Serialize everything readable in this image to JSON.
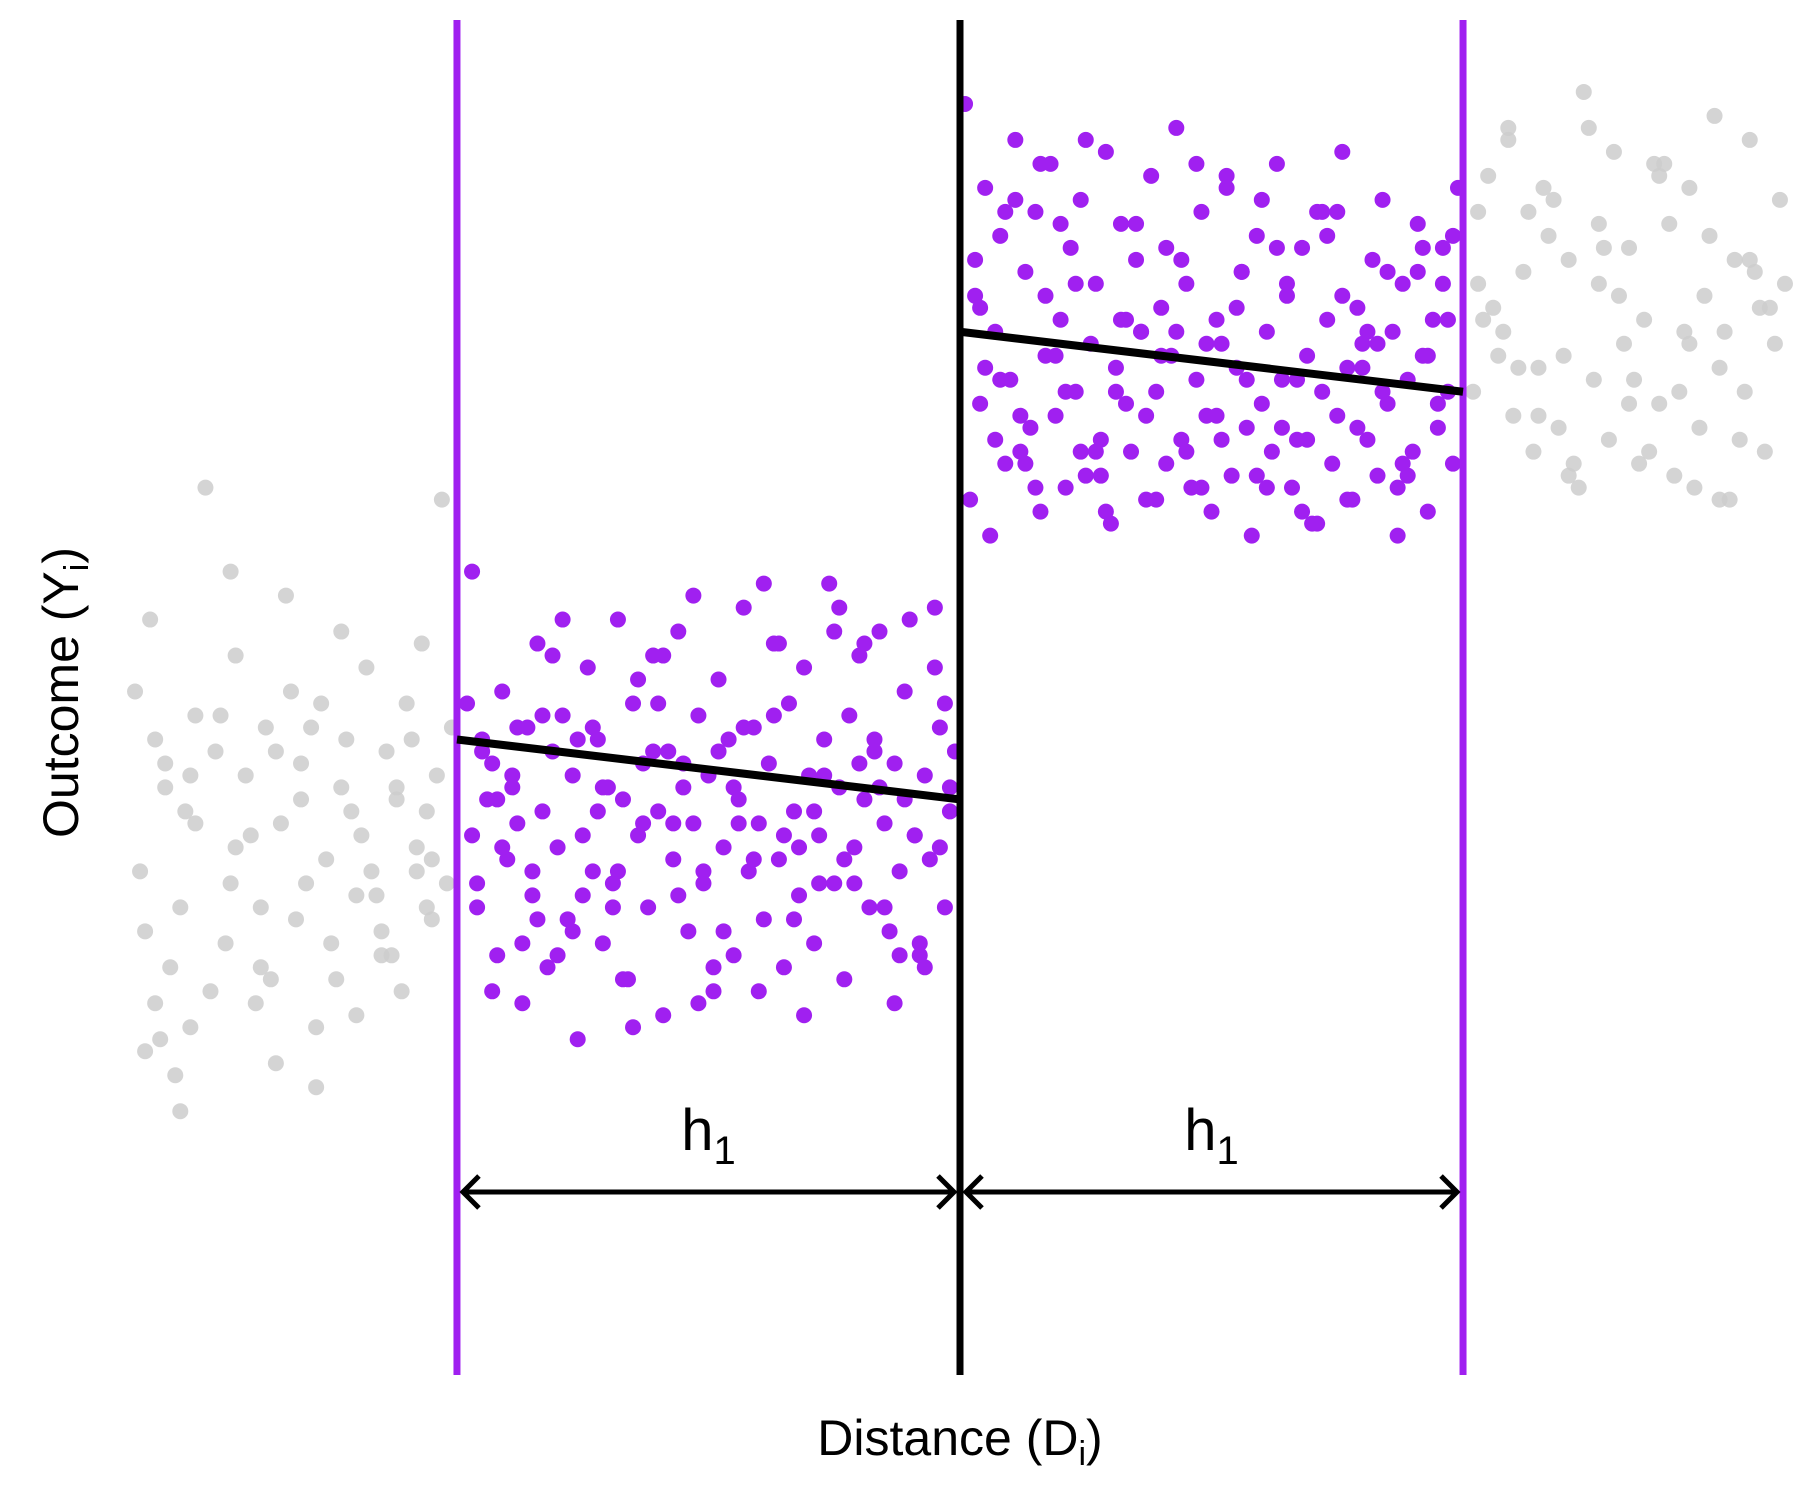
{
  "chart_data": {
    "type": "scatter",
    "title": "",
    "xlabel": "Distance (Dᵢ)",
    "ylabel": "Outcome (Yᵢ)",
    "xlabel_main": "Distance (D",
    "xlabel_sub": "i",
    "xlabel_close": ")",
    "ylabel_main": "Outcome (Y",
    "ylabel_sub": "i",
    "ylabel_close": ")",
    "xlim": [
      -1.65,
      1.65
    ],
    "ylim": [
      -5.8,
      5.5
    ],
    "cutoff": 0,
    "bandwidth": 1,
    "bandwidth_label_main": "h",
    "bandwidth_label_sub": "1",
    "grid": false,
    "legend": "none",
    "colors": {
      "in_bandwidth": "#a020f0",
      "out_of_bandwidth": "#cccccc",
      "cutoff_line": "#000000",
      "bandwidth_line": "#a020f0",
      "fit_line": "#000000"
    },
    "fit_lines": [
      {
        "side": "left",
        "x": [
          -1,
          0
        ],
        "y": [
          -0.5,
          -1.0
        ]
      },
      {
        "side": "right",
        "x": [
          0,
          1
        ],
        "y": [
          2.9,
          2.4
        ]
      }
    ],
    "series": [
      {
        "name": "",
        "color": "#cccccc",
        "x": [
          -1.64,
          -1.63,
          -1.62,
          -1.61,
          -1.6,
          -1.59,
          -1.58,
          -1.57,
          -1.56,
          -1.55,
          -1.54,
          -1.53,
          -1.52,
          -1.5,
          -1.48,
          -1.46,
          -1.45,
          -1.44,
          -1.42,
          -1.4,
          -1.39,
          -1.38,
          -1.36,
          -1.35,
          -1.34,
          -1.32,
          -1.31,
          -1.3,
          -1.28,
          -1.27,
          -1.26,
          -1.24,
          -1.23,
          -1.22,
          -1.2,
          -1.19,
          -1.18,
          -1.16,
          -1.15,
          -1.14,
          -1.12,
          -1.11,
          -1.1,
          -1.08,
          -1.07,
          -1.06,
          -1.05,
          -1.04,
          -1.03,
          -1.02,
          -1.01,
          -1.6,
          -1.52,
          -1.44,
          -1.36,
          -1.28,
          -1.2,
          -1.12,
          -1.05,
          -1.55,
          -1.47,
          -1.39,
          -1.31,
          -1.23,
          -1.15,
          -1.08,
          -1.58,
          -1.49,
          -1.41,
          -1.33,
          -1.25,
          -1.17,
          -1.09,
          -1.62,
          -1.53,
          -1.45,
          -1.37,
          -1.29,
          -1.21,
          -1.13,
          -1.06,
          1.02,
          1.03,
          1.05,
          1.06,
          1.08,
          1.09,
          1.11,
          1.12,
          1.14,
          1.15,
          1.17,
          1.18,
          1.2,
          1.21,
          1.23,
          1.24,
          1.26,
          1.27,
          1.29,
          1.3,
          1.32,
          1.33,
          1.35,
          1.36,
          1.38,
          1.39,
          1.41,
          1.42,
          1.44,
          1.45,
          1.47,
          1.48,
          1.5,
          1.51,
          1.53,
          1.54,
          1.56,
          1.57,
          1.59,
          1.6,
          1.62,
          1.63,
          1.64,
          1.04,
          1.1,
          1.16,
          1.22,
          1.28,
          1.34,
          1.4,
          1.46,
          1.52,
          1.58,
          1.07,
          1.13,
          1.19,
          1.25,
          1.31,
          1.37,
          1.43,
          1.49,
          1.55,
          1.61,
          1.03,
          1.09,
          1.15,
          1.21,
          1.27,
          1.33,
          1.39,
          1.45,
          1.51,
          1.57
        ],
        "y": [
          -0.1,
          -1.6,
          -2.1,
          0.5,
          -0.5,
          -3.0,
          -0.9,
          -2.4,
          -3.3,
          -3.6,
          -1.1,
          -2.9,
          -0.3,
          1.6,
          -0.6,
          -2.2,
          0.9,
          -1.4,
          -0.8,
          -2.7,
          -1.9,
          -0.4,
          -3.2,
          -1.2,
          0.7,
          -2.0,
          -0.7,
          -1.7,
          -3.4,
          -0.2,
          -1.5,
          -2.5,
          -0.9,
          -0.5,
          -2.8,
          -1.3,
          0.1,
          -1.8,
          -2.3,
          -0.6,
          -1.0,
          -2.6,
          -0.2,
          -1.6,
          0.3,
          -1.1,
          -2.0,
          -0.8,
          1.5,
          -1.7,
          -0.4,
          -2.7,
          -1.2,
          0.2,
          -0.6,
          -2.9,
          -1.8,
          -0.9,
          -1.5,
          -1.9,
          -0.3,
          -2.4,
          -1.0,
          0.4,
          -2.1,
          -1.4,
          -0.7,
          -2.6,
          -1.3,
          -0.1,
          -2.2,
          -1.6,
          -0.5,
          -3.1,
          -0.8,
          -1.7,
          -2.5,
          -0.4,
          -1.1,
          -2.3,
          -1.9,
          2.4,
          3.9,
          4.2,
          3.1,
          2.9,
          4.6,
          2.6,
          3.4,
          1.9,
          2.2,
          3.7,
          4.0,
          2.7,
          3.5,
          1.6,
          4.9,
          2.5,
          3.3,
          2.0,
          4.4,
          2.8,
          3.6,
          1.8,
          3.0,
          4.3,
          2.3,
          3.8,
          1.7,
          2.9,
          4.1,
          2.1,
          3.2,
          4.7,
          2.6,
          1.5,
          3.5,
          2.4,
          4.5,
          3.1,
          1.9,
          2.8,
          4.0,
          3.3,
          3.0,
          2.2,
          4.1,
          1.8,
          3.6,
          2.5,
          4.3,
          1.6,
          2.9,
          3.4,
          2.7,
          3.9,
          2.1,
          4.6,
          3.2,
          1.9,
          2.4,
          3.7,
          2.0,
          3.1,
          3.3,
          4.5,
          2.6,
          1.7,
          3.8,
          2.3,
          4.2,
          2.8,
          1.5,
          3.5
        ]
      },
      {
        "name": "",
        "color": "#a020f0",
        "x": [
          -0.98,
          -0.97,
          -0.96,
          -0.95,
          -0.94,
          -0.93,
          -0.92,
          -0.91,
          -0.9,
          -0.89,
          -0.88,
          -0.87,
          -0.86,
          -0.85,
          -0.84,
          -0.83,
          -0.82,
          -0.81,
          -0.8,
          -0.79,
          -0.78,
          -0.77,
          -0.76,
          -0.75,
          -0.74,
          -0.73,
          -0.72,
          -0.71,
          -0.7,
          -0.69,
          -0.68,
          -0.67,
          -0.66,
          -0.65,
          -0.64,
          -0.63,
          -0.62,
          -0.61,
          -0.6,
          -0.59,
          -0.58,
          -0.57,
          -0.56,
          -0.55,
          -0.54,
          -0.53,
          -0.52,
          -0.51,
          -0.5,
          -0.49,
          -0.48,
          -0.47,
          -0.46,
          -0.45,
          -0.44,
          -0.43,
          -0.42,
          -0.41,
          -0.4,
          -0.39,
          -0.38,
          -0.37,
          -0.36,
          -0.35,
          -0.34,
          -0.33,
          -0.32,
          -0.31,
          -0.3,
          -0.29,
          -0.28,
          -0.27,
          -0.26,
          -0.25,
          -0.24,
          -0.23,
          -0.22,
          -0.21,
          -0.2,
          -0.19,
          -0.18,
          -0.17,
          -0.16,
          -0.15,
          -0.14,
          -0.13,
          -0.12,
          -0.11,
          -0.1,
          -0.09,
          -0.08,
          -0.07,
          -0.06,
          -0.05,
          -0.04,
          -0.03,
          -0.02,
          -0.01,
          -0.97,
          -0.93,
          -0.89,
          -0.85,
          -0.81,
          -0.77,
          -0.73,
          -0.69,
          -0.65,
          -0.61,
          -0.57,
          -0.53,
          -0.49,
          -0.45,
          -0.41,
          -0.37,
          -0.33,
          -0.29,
          -0.25,
          -0.21,
          -0.17,
          -0.13,
          -0.09,
          -0.05,
          -0.02,
          -0.95,
          -0.91,
          -0.87,
          -0.83,
          -0.79,
          -0.75,
          -0.71,
          -0.67,
          -0.63,
          -0.59,
          -0.55,
          -0.51,
          -0.47,
          -0.43,
          -0.39,
          -0.35,
          -0.31,
          -0.27,
          -0.23,
          -0.19,
          -0.15,
          -0.11,
          -0.07,
          -0.03,
          -0.96,
          -0.88,
          -0.8,
          -0.72,
          -0.64,
          -0.56,
          -0.48,
          -0.4,
          -0.32,
          -0.24,
          -0.16,
          -0.08,
          -0.92,
          -0.84,
          -0.76,
          -0.68,
          -0.6,
          -0.52,
          -0.44,
          -0.36,
          -0.28,
          -0.2,
          -0.12,
          -0.04,
          0.01,
          0.02,
          0.03,
          0.04,
          0.05,
          0.06,
          0.07,
          0.08,
          0.09,
          0.1,
          0.11,
          0.12,
          0.13,
          0.14,
          0.15,
          0.16,
          0.17,
          0.18,
          0.19,
          0.2,
          0.21,
          0.22,
          0.23,
          0.24,
          0.25,
          0.26,
          0.27,
          0.28,
          0.29,
          0.3,
          0.31,
          0.32,
          0.33,
          0.34,
          0.35,
          0.36,
          0.37,
          0.38,
          0.39,
          0.4,
          0.41,
          0.42,
          0.43,
          0.44,
          0.45,
          0.46,
          0.47,
          0.48,
          0.49,
          0.5,
          0.51,
          0.52,
          0.53,
          0.54,
          0.55,
          0.56,
          0.57,
          0.58,
          0.59,
          0.6,
          0.61,
          0.62,
          0.63,
          0.64,
          0.65,
          0.66,
          0.67,
          0.68,
          0.69,
          0.7,
          0.71,
          0.72,
          0.73,
          0.74,
          0.75,
          0.76,
          0.77,
          0.78,
          0.79,
          0.8,
          0.81,
          0.82,
          0.83,
          0.84,
          0.85,
          0.86,
          0.87,
          0.88,
          0.89,
          0.9,
          0.91,
          0.92,
          0.93,
          0.94,
          0.95,
          0.96,
          0.97,
          0.98,
          0.99,
          0.03,
          0.07,
          0.11,
          0.15,
          0.19,
          0.23,
          0.27,
          0.31,
          0.35,
          0.39,
          0.43,
          0.47,
          0.51,
          0.55,
          0.59,
          0.63,
          0.67,
          0.71,
          0.75,
          0.79,
          0.83,
          0.87,
          0.91,
          0.95,
          0.98,
          0.05,
          0.09,
          0.13,
          0.17,
          0.21,
          0.25,
          0.29,
          0.33,
          0.37,
          0.41,
          0.45,
          0.49,
          0.53,
          0.57,
          0.61,
          0.65,
          0.69,
          0.73,
          0.77,
          0.81,
          0.85,
          0.89,
          0.93,
          0.97,
          0.04,
          0.12,
          0.2,
          0.28,
          0.36,
          0.44,
          0.52,
          0.6,
          0.68,
          0.76,
          0.84,
          0.92,
          0.08,
          0.16,
          0.24,
          0.32,
          0.4,
          0.48,
          0.56,
          0.64,
          0.72,
          0.8,
          0.88,
          0.96
        ],
        "y": [
          -0.2,
          0.9,
          -1.9,
          -0.5,
          -1.0,
          -0.7,
          -2.3,
          -0.1,
          -1.5,
          -0.9,
          -1.2,
          -2.7,
          -0.4,
          -1.8,
          0.3,
          -1.1,
          -2.4,
          -0.6,
          -1.4,
          -0.3,
          -2.0,
          -0.8,
          -3.0,
          -1.3,
          0.1,
          -1.6,
          -0.5,
          -2.2,
          -0.9,
          -1.7,
          0.5,
          -1.0,
          -2.5,
          -0.2,
          -1.3,
          -0.7,
          -1.9,
          0.2,
          -1.1,
          -2.8,
          -0.6,
          -1.5,
          0.4,
          -0.9,
          -2.1,
          -1.2,
          -0.3,
          -1.7,
          -0.8,
          -2.6,
          0.0,
          -1.4,
          -0.5,
          -2.3,
          -1.0,
          0.6,
          -1.6,
          -0.4,
          -1.2,
          -2.0,
          -0.7,
          0.3,
          -1.5,
          -2.4,
          -0.2,
          -1.1,
          -1.8,
          0.1,
          -0.8,
          -2.2,
          -1.3,
          -0.5,
          0.8,
          -1.7,
          -0.9,
          -2.5,
          -0.3,
          -1.4,
          0.2,
          -1.0,
          -1.9,
          -0.6,
          0.4,
          -1.2,
          -2.1,
          -0.7,
          -1.6,
          -0.1,
          0.5,
          -1.3,
          -2.3,
          -0.8,
          -1.5,
          0.6,
          -0.4,
          -1.9,
          -1.1,
          -0.6,
          -1.3,
          -2.6,
          -0.8,
          -1.6,
          0.2,
          -2.1,
          -0.4,
          -1.9,
          -2.9,
          -0.6,
          -1.2,
          0.7,
          -2.4,
          -0.9,
          -1.5,
          -0.3,
          -2.0,
          -1.1,
          0.4,
          -1.7,
          -0.5,
          -2.7,
          -1.3,
          0.1,
          -0.9,
          -0.6,
          -1.4,
          -2.2,
          -0.3,
          0.5,
          -1.8,
          -0.9,
          -2.5,
          -1.2,
          0.2,
          -0.7,
          -1.6,
          -2.1,
          -0.4,
          0.8,
          -1.3,
          -2.8,
          -0.8,
          -1.5,
          0.3,
          -1.9,
          -1.0,
          -2.4,
          -0.2,
          -1.7,
          -0.4,
          -2.3,
          -1.1,
          0.0,
          -1.8,
          -0.6,
          -2.6,
          -1.4,
          0.6,
          -0.9,
          -2.2,
          -1.0,
          -2.0,
          -0.5,
          -1.6,
          -0.2,
          -2.7,
          -1.2,
          0.3,
          -1.7,
          -0.7,
          -2.3,
          -1.4,
          4.8,
          1.5,
          3.2,
          2.3,
          4.1,
          1.2,
          2.9,
          3.7,
          1.8,
          2.5,
          4.5,
          1.9,
          3.4,
          2.1,
          3.9,
          1.4,
          2.7,
          4.3,
          2.2,
          3.0,
          1.6,
          3.6,
          2.4,
          4.0,
          1.7,
          2.8,
          3.3,
          2.0,
          4.4,
          1.3,
          2.6,
          3.8,
          2.3,
          1.9,
          3.5,
          2.9,
          1.5,
          4.2,
          2.4,
          3.1,
          1.8,
          2.7,
          4.6,
          2.0,
          3.3,
          1.6,
          2.5,
          3.9,
          2.2,
          1.4,
          3.0,
          2.8,
          4.1,
          1.7,
          2.6,
          3.4,
          2.1,
          1.2,
          3.7,
          2.3,
          2.9,
          1.9,
          4.3,
          2.5,
          3.2,
          1.6,
          2.0,
          3.6,
          2.7,
          1.3,
          3.9,
          2.4,
          3.0,
          1.8,
          2.2,
          4.4,
          2.6,
          1.5,
          3.1,
          2.8,
          2.0,
          3.5,
          1.7,
          4.0,
          2.3,
          2.9,
          1.2,
          3.3,
          2.5,
          1.9,
          3.8,
          2.7,
          1.4,
          3.0,
          2.1,
          3.6,
          2.4,
          1.8,
          4.1,
          3.5,
          2.0,
          4.0,
          1.6,
          2.7,
          3.3,
          1.9,
          2.4,
          3.8,
          1.5,
          2.9,
          4.3,
          2.2,
          3.1,
          1.7,
          3.6,
          2.5,
          1.3,
          3.9,
          2.1,
          2.8,
          1.6,
          3.4,
          2.3,
          3.7,
          2.6,
          3.9,
          1.8,
          3.2,
          2.4,
          4.5,
          1.4,
          3.0,
          2.2,
          3.6,
          1.9,
          2.8,
          4.2,
          2.5,
          1.6,
          3.3,
          2.0,
          3.7,
          1.5,
          2.9,
          3.4,
          1.7,
          2.7,
          3.0,
          3.1,
          2.2,
          3.8,
          1.7,
          2.9,
          3.5,
          2.0,
          4.0,
          1.4,
          3.2,
          2.4,
          3.6,
          2.5,
          4.3,
          1.9,
          3.0,
          2.7,
          1.6,
          3.4,
          2.1,
          3.9,
          2.6,
          1.8,
          3.3
        ]
      }
    ]
  }
}
